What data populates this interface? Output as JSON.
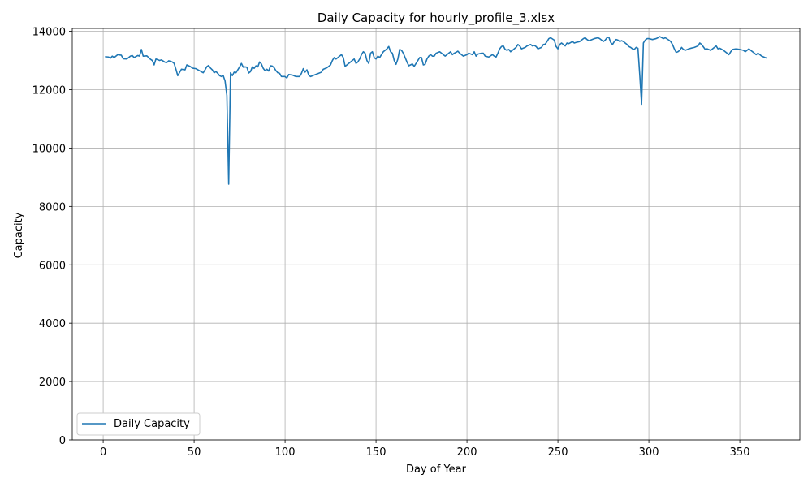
{
  "chart_data": {
    "type": "line",
    "title": "Daily Capacity for hourly_profile_3.xlsx",
    "xlabel": "Day of Year",
    "ylabel": "Capacity",
    "xlim": [
      -17,
      383
    ],
    "ylim": [
      0,
      14100
    ],
    "xticks": [
      0,
      50,
      100,
      150,
      200,
      250,
      300,
      350
    ],
    "yticks": [
      0,
      2000,
      4000,
      6000,
      8000,
      10000,
      12000,
      14000
    ],
    "grid": true,
    "legend_position": "lower-left",
    "series": [
      {
        "name": "Daily Capacity",
        "color": "#1f77b4",
        "points": [
          [
            1,
            13130
          ],
          [
            3,
            13120
          ],
          [
            4,
            13080
          ],
          [
            5,
            13150
          ],
          [
            6,
            13100
          ],
          [
            8,
            13200
          ],
          [
            10,
            13180
          ],
          [
            11,
            13060
          ],
          [
            13,
            13050
          ],
          [
            15,
            13150
          ],
          [
            16,
            13170
          ],
          [
            17,
            13100
          ],
          [
            19,
            13170
          ],
          [
            20,
            13150
          ],
          [
            21,
            13380
          ],
          [
            22,
            13150
          ],
          [
            24,
            13160
          ],
          [
            26,
            13040
          ],
          [
            27,
            13000
          ],
          [
            28,
            12850
          ],
          [
            29,
            13050
          ],
          [
            31,
            13000
          ],
          [
            32,
            13020
          ],
          [
            34,
            12940
          ],
          [
            35,
            12930
          ],
          [
            36,
            12990
          ],
          [
            38,
            12950
          ],
          [
            39,
            12900
          ],
          [
            40,
            12700
          ],
          [
            41,
            12480
          ],
          [
            43,
            12700
          ],
          [
            45,
            12680
          ],
          [
            46,
            12850
          ],
          [
            48,
            12790
          ],
          [
            49,
            12740
          ],
          [
            51,
            12720
          ],
          [
            53,
            12650
          ],
          [
            55,
            12580
          ],
          [
            56,
            12680
          ],
          [
            57,
            12790
          ],
          [
            58,
            12830
          ],
          [
            59,
            12740
          ],
          [
            60,
            12680
          ],
          [
            61,
            12580
          ],
          [
            62,
            12620
          ],
          [
            63,
            12560
          ],
          [
            64,
            12480
          ],
          [
            65,
            12450
          ],
          [
            66,
            12480
          ],
          [
            67,
            12300
          ],
          [
            68,
            11800
          ],
          [
            69,
            8760
          ],
          [
            70,
            12580
          ],
          [
            71,
            12480
          ],
          [
            72,
            12600
          ],
          [
            73,
            12580
          ],
          [
            75,
            12780
          ],
          [
            76,
            12900
          ],
          [
            77,
            12770
          ],
          [
            78,
            12780
          ],
          [
            79,
            12770
          ],
          [
            80,
            12570
          ],
          [
            81,
            12620
          ],
          [
            82,
            12780
          ],
          [
            83,
            12730
          ],
          [
            84,
            12820
          ],
          [
            85,
            12780
          ],
          [
            86,
            12950
          ],
          [
            87,
            12880
          ],
          [
            88,
            12730
          ],
          [
            89,
            12650
          ],
          [
            90,
            12700
          ],
          [
            91,
            12640
          ],
          [
            92,
            12820
          ],
          [
            93,
            12810
          ],
          [
            94,
            12750
          ],
          [
            95,
            12650
          ],
          [
            96,
            12580
          ],
          [
            97,
            12560
          ],
          [
            98,
            12450
          ],
          [
            100,
            12450
          ],
          [
            101,
            12400
          ],
          [
            102,
            12520
          ],
          [
            104,
            12500
          ],
          [
            106,
            12450
          ],
          [
            108,
            12450
          ],
          [
            109,
            12560
          ],
          [
            110,
            12720
          ],
          [
            111,
            12600
          ],
          [
            112,
            12680
          ],
          [
            113,
            12500
          ],
          [
            114,
            12450
          ],
          [
            116,
            12500
          ],
          [
            118,
            12550
          ],
          [
            120,
            12600
          ],
          [
            121,
            12700
          ],
          [
            123,
            12750
          ],
          [
            125,
            12850
          ],
          [
            126,
            13000
          ],
          [
            127,
            13100
          ],
          [
            128,
            13050
          ],
          [
            129,
            13100
          ],
          [
            130,
            13150
          ],
          [
            131,
            13200
          ],
          [
            132,
            13100
          ],
          [
            133,
            12800
          ],
          [
            134,
            12850
          ],
          [
            136,
            12950
          ],
          [
            137,
            13000
          ],
          [
            138,
            13050
          ],
          [
            139,
            12900
          ],
          [
            140,
            12950
          ],
          [
            141,
            13050
          ],
          [
            142,
            13200
          ],
          [
            143,
            13300
          ],
          [
            144,
            13250
          ],
          [
            145,
            13000
          ],
          [
            146,
            12900
          ],
          [
            147,
            13250
          ],
          [
            148,
            13300
          ],
          [
            149,
            13100
          ],
          [
            150,
            13050
          ],
          [
            151,
            13150
          ],
          [
            152,
            13100
          ],
          [
            153,
            13200
          ],
          [
            154,
            13300
          ],
          [
            155,
            13350
          ],
          [
            156,
            13400
          ],
          [
            157,
            13480
          ],
          [
            158,
            13300
          ],
          [
            159,
            13250
          ],
          [
            160,
            13000
          ],
          [
            161,
            12870
          ],
          [
            162,
            13050
          ],
          [
            163,
            13380
          ],
          [
            164,
            13350
          ],
          [
            165,
            13250
          ],
          [
            166,
            13100
          ],
          [
            167,
            12950
          ],
          [
            168,
            12820
          ],
          [
            170,
            12880
          ],
          [
            171,
            12800
          ],
          [
            172,
            12900
          ],
          [
            173,
            13000
          ],
          [
            174,
            13100
          ],
          [
            175,
            13100
          ],
          [
            176,
            12850
          ],
          [
            177,
            12870
          ],
          [
            178,
            13050
          ],
          [
            179,
            13150
          ],
          [
            180,
            13200
          ],
          [
            181,
            13150
          ],
          [
            182,
            13150
          ],
          [
            183,
            13250
          ],
          [
            185,
            13300
          ],
          [
            186,
            13250
          ],
          [
            188,
            13150
          ],
          [
            189,
            13200
          ],
          [
            190,
            13250
          ],
          [
            191,
            13300
          ],
          [
            192,
            13200
          ],
          [
            193,
            13250
          ],
          [
            194,
            13280
          ],
          [
            195,
            13320
          ],
          [
            196,
            13250
          ],
          [
            197,
            13200
          ],
          [
            198,
            13150
          ],
          [
            200,
            13200
          ],
          [
            201,
            13250
          ],
          [
            203,
            13200
          ],
          [
            204,
            13300
          ],
          [
            205,
            13150
          ],
          [
            206,
            13220
          ],
          [
            208,
            13250
          ],
          [
            209,
            13250
          ],
          [
            210,
            13150
          ],
          [
            212,
            13120
          ],
          [
            214,
            13200
          ],
          [
            215,
            13150
          ],
          [
            216,
            13120
          ],
          [
            217,
            13250
          ],
          [
            218,
            13400
          ],
          [
            219,
            13480
          ],
          [
            220,
            13500
          ],
          [
            221,
            13380
          ],
          [
            222,
            13350
          ],
          [
            223,
            13380
          ],
          [
            224,
            13300
          ],
          [
            225,
            13350
          ],
          [
            226,
            13400
          ],
          [
            227,
            13450
          ],
          [
            228,
            13550
          ],
          [
            229,
            13500
          ],
          [
            230,
            13400
          ],
          [
            232,
            13450
          ],
          [
            233,
            13500
          ],
          [
            235,
            13550
          ],
          [
            236,
            13500
          ],
          [
            237,
            13520
          ],
          [
            238,
            13480
          ],
          [
            239,
            13400
          ],
          [
            241,
            13450
          ],
          [
            242,
            13550
          ],
          [
            243,
            13560
          ],
          [
            244,
            13650
          ],
          [
            245,
            13750
          ],
          [
            246,
            13780
          ],
          [
            248,
            13700
          ],
          [
            249,
            13480
          ],
          [
            250,
            13400
          ],
          [
            251,
            13550
          ],
          [
            252,
            13600
          ],
          [
            253,
            13550
          ],
          [
            254,
            13500
          ],
          [
            255,
            13600
          ],
          [
            256,
            13580
          ],
          [
            258,
            13650
          ],
          [
            259,
            13600
          ],
          [
            260,
            13620
          ],
          [
            262,
            13650
          ],
          [
            263,
            13700
          ],
          [
            264,
            13750
          ],
          [
            265,
            13780
          ],
          [
            266,
            13720
          ],
          [
            267,
            13680
          ],
          [
            268,
            13700
          ],
          [
            270,
            13750
          ],
          [
            272,
            13780
          ],
          [
            273,
            13750
          ],
          [
            274,
            13700
          ],
          [
            275,
            13650
          ],
          [
            276,
            13700
          ],
          [
            277,
            13780
          ],
          [
            278,
            13800
          ],
          [
            279,
            13620
          ],
          [
            280,
            13550
          ],
          [
            281,
            13650
          ],
          [
            282,
            13720
          ],
          [
            283,
            13700
          ],
          [
            284,
            13650
          ],
          [
            285,
            13680
          ],
          [
            286,
            13650
          ],
          [
            287,
            13600
          ],
          [
            288,
            13550
          ],
          [
            289,
            13480
          ],
          [
            290,
            13450
          ],
          [
            291,
            13400
          ],
          [
            292,
            13380
          ],
          [
            293,
            13450
          ],
          [
            294,
            13420
          ],
          [
            295,
            12500
          ],
          [
            296,
            11500
          ],
          [
            297,
            13600
          ],
          [
            298,
            13700
          ],
          [
            299,
            13750
          ],
          [
            300,
            13750
          ],
          [
            302,
            13720
          ],
          [
            304,
            13750
          ],
          [
            305,
            13780
          ],
          [
            306,
            13820
          ],
          [
            308,
            13750
          ],
          [
            309,
            13780
          ],
          [
            311,
            13700
          ],
          [
            312,
            13650
          ],
          [
            313,
            13550
          ],
          [
            314,
            13400
          ],
          [
            315,
            13280
          ],
          [
            316,
            13300
          ],
          [
            317,
            13350
          ],
          [
            318,
            13450
          ],
          [
            319,
            13380
          ],
          [
            320,
            13350
          ],
          [
            322,
            13400
          ],
          [
            323,
            13420
          ],
          [
            325,
            13450
          ],
          [
            327,
            13500
          ],
          [
            328,
            13600
          ],
          [
            329,
            13550
          ],
          [
            331,
            13380
          ],
          [
            332,
            13400
          ],
          [
            334,
            13350
          ],
          [
            336,
            13450
          ],
          [
            337,
            13500
          ],
          [
            338,
            13400
          ],
          [
            339,
            13420
          ],
          [
            341,
            13350
          ],
          [
            342,
            13300
          ],
          [
            343,
            13250
          ],
          [
            344,
            13200
          ],
          [
            345,
            13300
          ],
          [
            346,
            13380
          ],
          [
            348,
            13400
          ],
          [
            350,
            13380
          ],
          [
            352,
            13350
          ],
          [
            353,
            13300
          ],
          [
            355,
            13400
          ],
          [
            356,
            13350
          ],
          [
            358,
            13250
          ],
          [
            359,
            13200
          ],
          [
            360,
            13250
          ],
          [
            362,
            13150
          ],
          [
            364,
            13100
          ],
          [
            365,
            13080
          ]
        ]
      }
    ]
  }
}
